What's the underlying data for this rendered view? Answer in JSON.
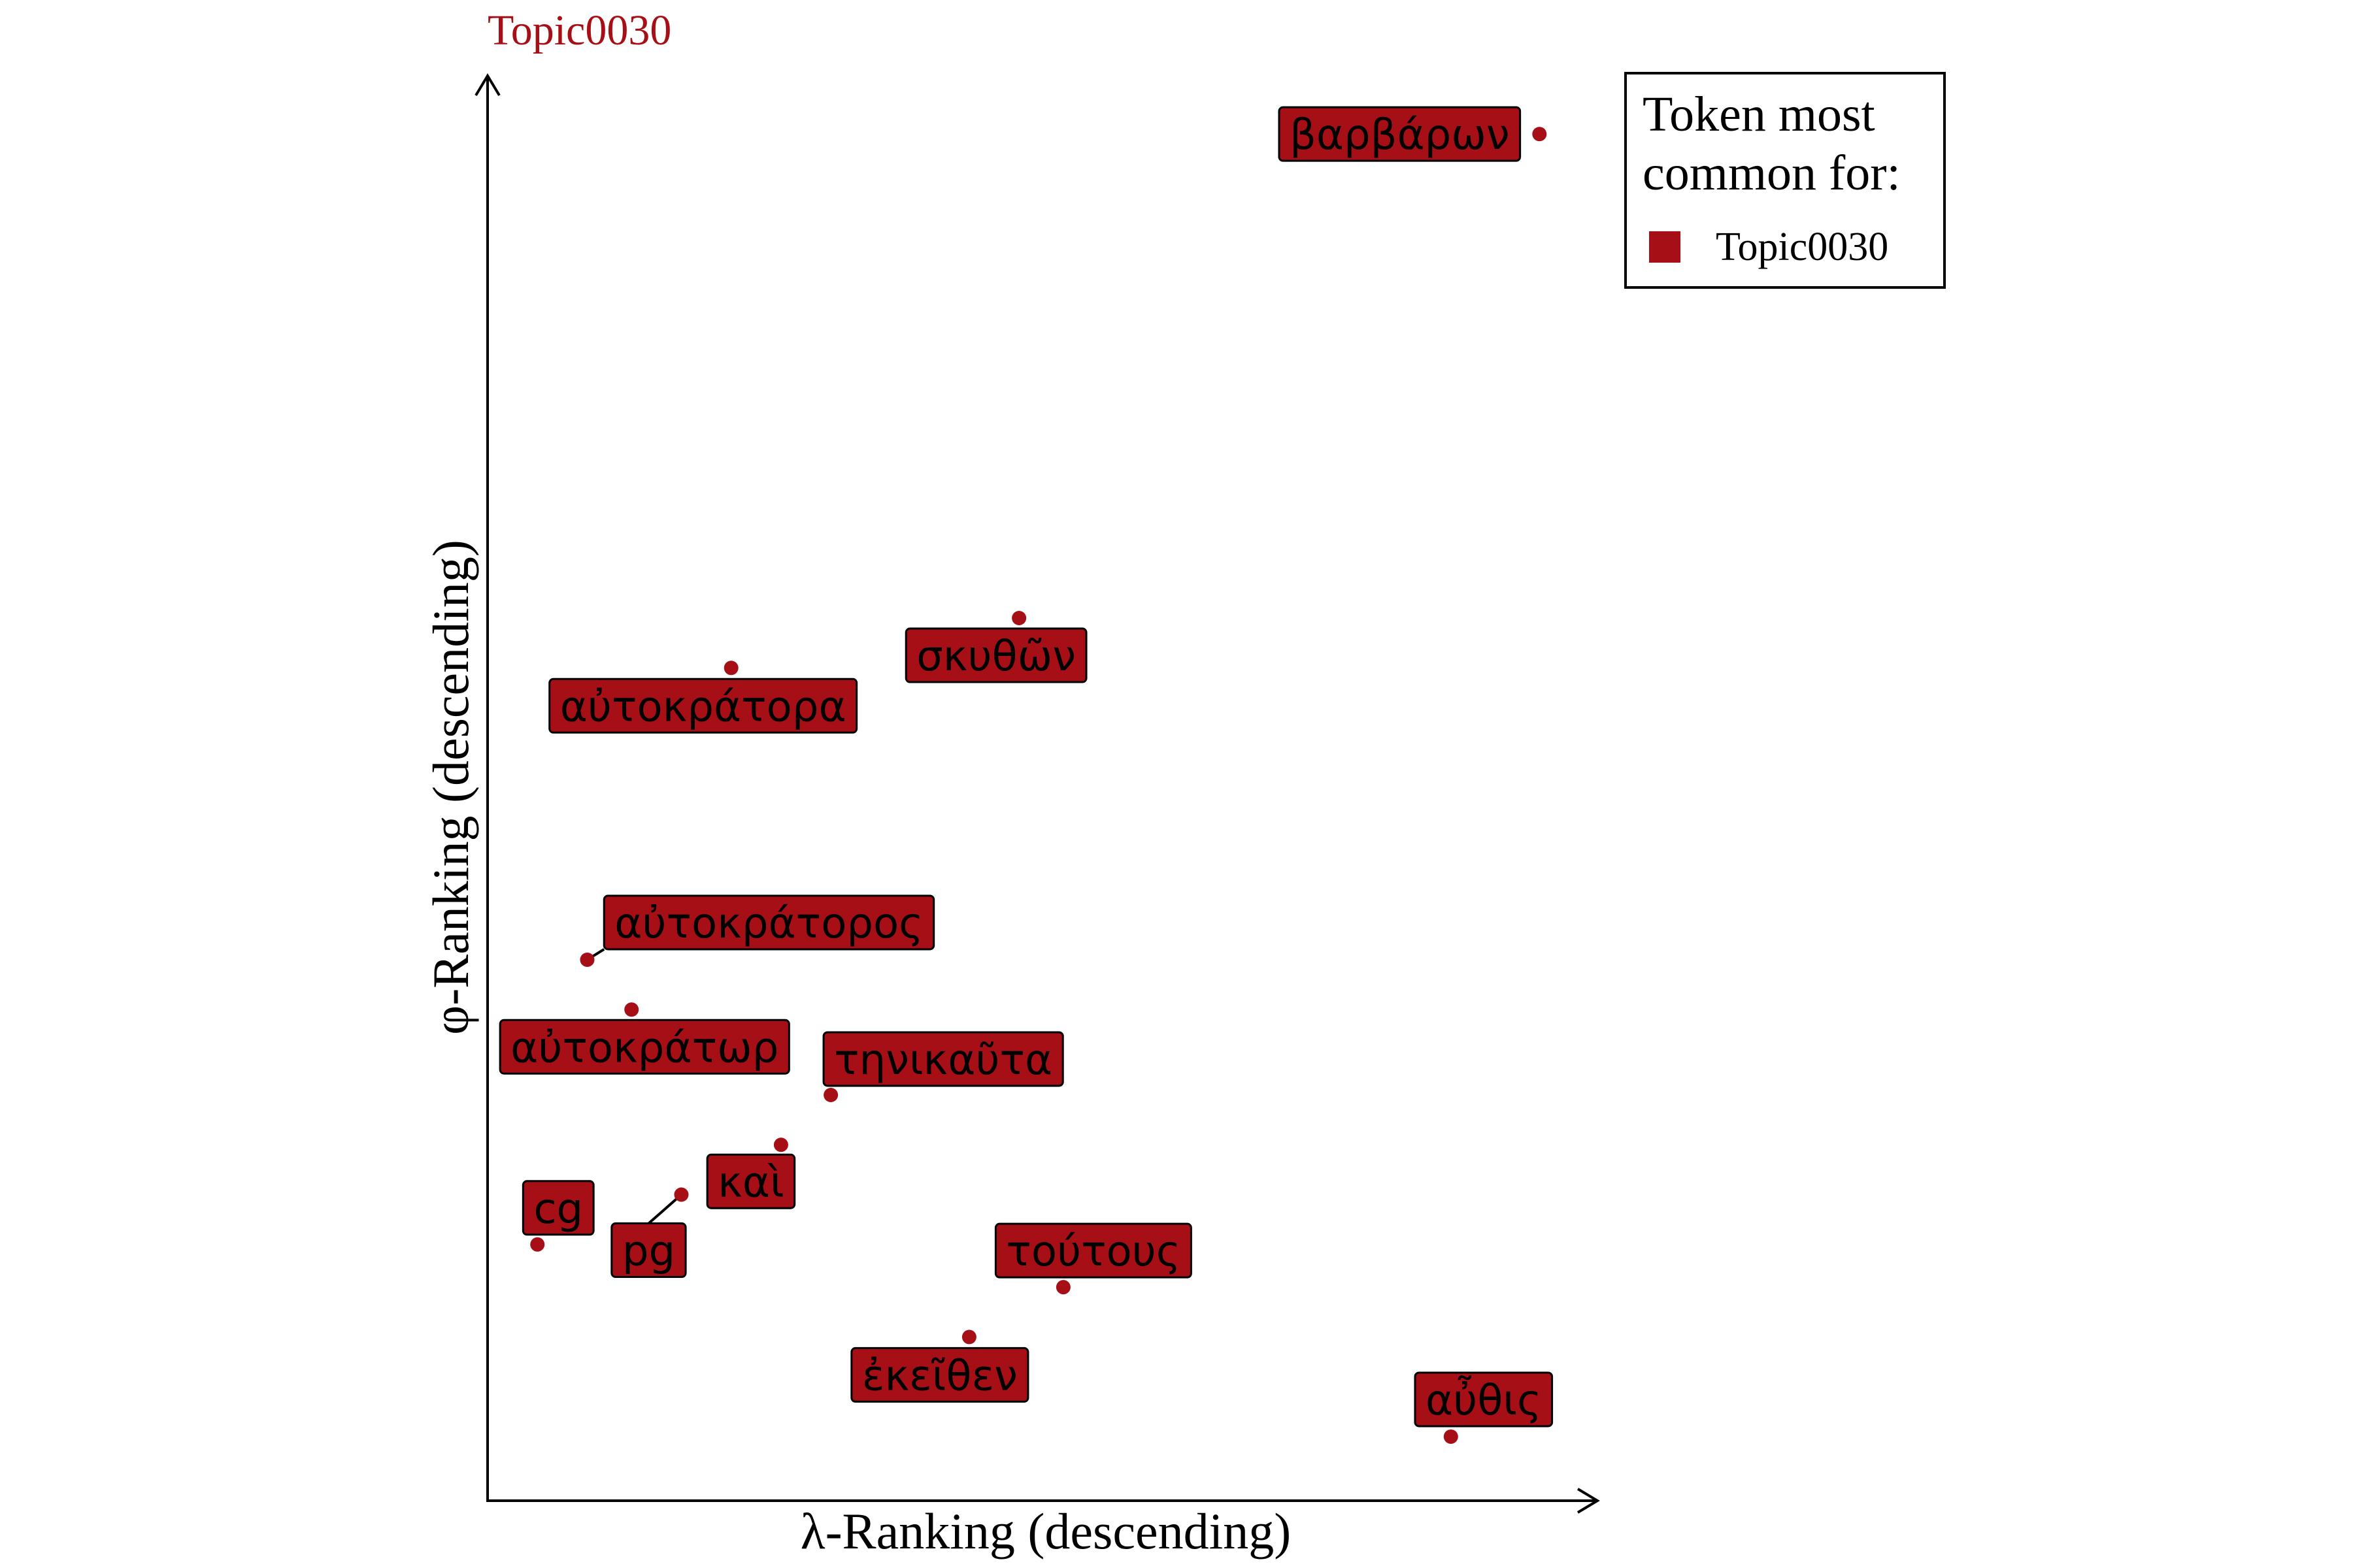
{
  "chart_data": {
    "type": "scatter",
    "title": "Topic0030",
    "xlabel": "λ-Ranking (descending)",
    "ylabel": "φ-Ranking (descending)",
    "xlim": [
      0,
      100
    ],
    "ylim": [
      0,
      100
    ],
    "grid": false,
    "legend": {
      "title_line1": "Token most",
      "title_line2": "common for:",
      "placement": "top-right",
      "entries": [
        {
          "label": "Topic0030",
          "color": "#a50f15"
        }
      ]
    },
    "series": [
      {
        "name": "Topic0030",
        "color": "#a50f15",
        "points": [
          {
            "label": "βαρβάρων",
            "x": 95.0,
            "y": 96.0
          },
          {
            "label": "σκυθῶν",
            "x": 48.0,
            "y": 62.0
          },
          {
            "label": "αὐτοκράτορα",
            "x": 22.0,
            "y": 58.5
          },
          {
            "label": "αὐτοκράτορος",
            "x": 9.0,
            "y": 38.0
          },
          {
            "label": "αὐτοκράτωρ",
            "x": 13.0,
            "y": 34.5
          },
          {
            "label": "τηνικαῦτα",
            "x": 31.0,
            "y": 28.5
          },
          {
            "label": "καὶ",
            "x": 26.5,
            "y": 25.0
          },
          {
            "label": "pg",
            "x": 17.5,
            "y": 21.5
          },
          {
            "label": "cg",
            "x": 4.5,
            "y": 18.0
          },
          {
            "label": "τούτους",
            "x": 52.0,
            "y": 15.0
          },
          {
            "label": "ἐκεῖθεν",
            "x": 43.5,
            "y": 11.5
          },
          {
            "label": "αὖθις",
            "x": 87.0,
            "y": 4.5
          }
        ]
      }
    ]
  }
}
